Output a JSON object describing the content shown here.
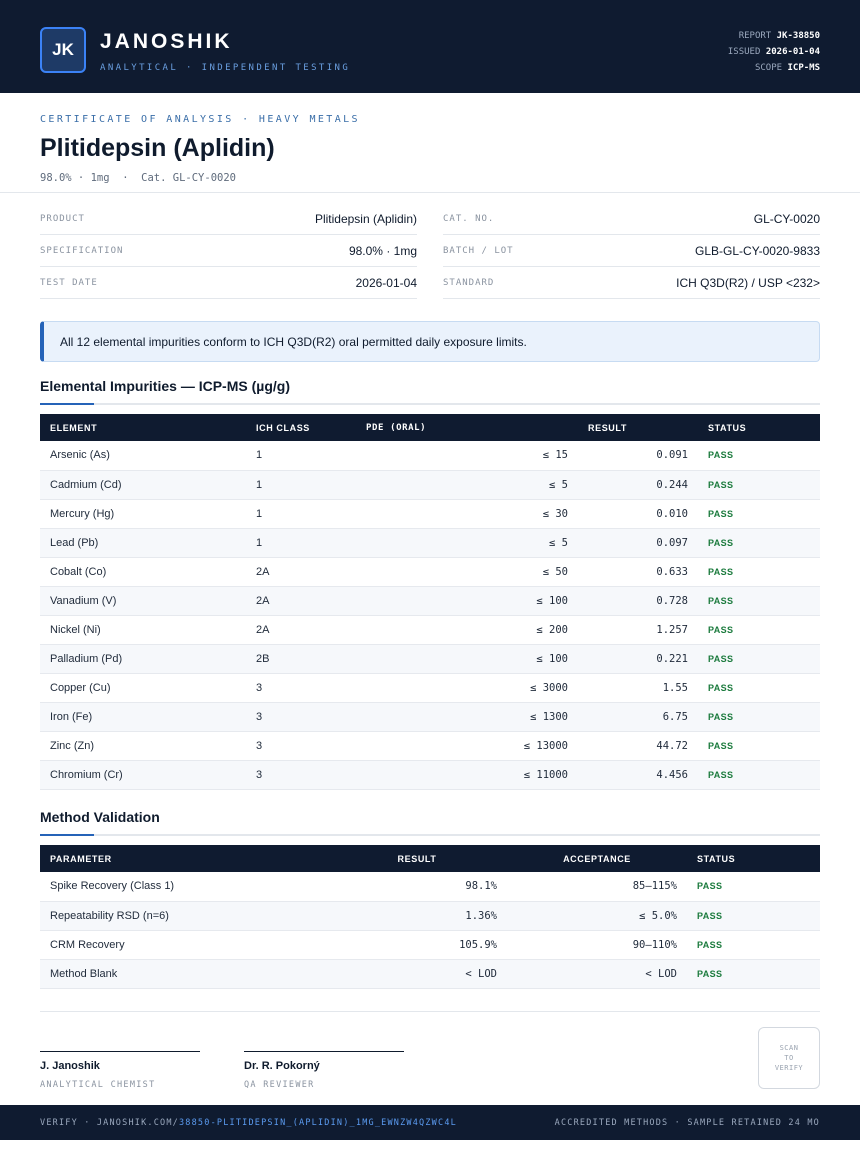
{
  "header": {
    "logo_text": "JK",
    "brand": "JANOSHIK",
    "tagline": "ANALYTICAL · INDEPENDENT TESTING",
    "report_label": "REPORT",
    "report_value": "JK-38850",
    "issued_label": "ISSUED",
    "issued_value": "2026-01-04",
    "scope_label": "SCOPE",
    "scope_value": "ICP-MS"
  },
  "doc": {
    "eyebrow": "CERTIFICATE OF ANALYSIS · HEAVY METALS",
    "title": "Plitidepsin (Aplidin)",
    "purity": "98.0%",
    "mass": "1mg",
    "cat": "Cat. GL-CY-0020"
  },
  "info_left": [
    {
      "key": "PRODUCT",
      "value": "Plitidepsin (Aplidin)"
    },
    {
      "key": "SPECIFICATION",
      "value": "98.0% · 1mg"
    },
    {
      "key": "TEST DATE",
      "value": "2026-01-04"
    }
  ],
  "info_right": [
    {
      "key": "CAT. NO.",
      "value": "GL-CY-0020"
    },
    {
      "key": "BATCH / LOT",
      "value": "GLB-GL-CY-0020-9833"
    },
    {
      "key": "STANDARD",
      "value": "ICH Q3D(R2) / USP <232>"
    }
  ],
  "notice": "All 12 elemental impurities conform to ICH Q3D(R2) oral permitted daily exposure limits.",
  "impurities": {
    "title": "Elemental Impurities — ICP-MS (µg/g)",
    "headers": [
      "ELEMENT",
      "ICH CLASS",
      "PDE (ORAL)",
      "RESULT",
      "STATUS"
    ],
    "rows": [
      [
        "Arsenic (As)",
        "1",
        "≤ 15",
        "0.091",
        "PASS"
      ],
      [
        "Cadmium (Cd)",
        "1",
        "≤ 5",
        "0.244",
        "PASS"
      ],
      [
        "Mercury (Hg)",
        "1",
        "≤ 30",
        "0.010",
        "PASS"
      ],
      [
        "Lead (Pb)",
        "1",
        "≤ 5",
        "0.097",
        "PASS"
      ],
      [
        "Cobalt (Co)",
        "2A",
        "≤ 50",
        "0.633",
        "PASS"
      ],
      [
        "Vanadium (V)",
        "2A",
        "≤ 100",
        "0.728",
        "PASS"
      ],
      [
        "Nickel (Ni)",
        "2A",
        "≤ 200",
        "1.257",
        "PASS"
      ],
      [
        "Palladium (Pd)",
        "2B",
        "≤ 100",
        "0.221",
        "PASS"
      ],
      [
        "Copper (Cu)",
        "3",
        "≤ 3000",
        "1.55",
        "PASS"
      ],
      [
        "Iron (Fe)",
        "3",
        "≤ 1300",
        "6.75",
        "PASS"
      ],
      [
        "Zinc (Zn)",
        "3",
        "≤ 13000",
        "44.72",
        "PASS"
      ],
      [
        "Chromium (Cr)",
        "3",
        "≤ 11000",
        "4.456",
        "PASS"
      ]
    ]
  },
  "validation": {
    "title": "Method Validation",
    "headers": [
      "PARAMETER",
      "RESULT",
      "ACCEPTANCE",
      "STATUS"
    ],
    "rows": [
      [
        "Spike Recovery (Class 1)",
        "98.1%",
        "85–115%",
        "PASS"
      ],
      [
        "Repeatability RSD (n=6)",
        "1.36%",
        "≤ 5.0%",
        "PASS"
      ],
      [
        "CRM Recovery",
        "105.9%",
        "90–110%",
        "PASS"
      ],
      [
        "Method Blank",
        "< LOD",
        "< LOD",
        "PASS"
      ]
    ]
  },
  "signatures": [
    {
      "name": "J. Janoshik",
      "role": "ANALYTICAL CHEMIST"
    },
    {
      "name": "Dr. R. Pokorný",
      "role": "QA REVIEWER"
    }
  ],
  "scan": [
    "SCAN",
    "TO",
    "VERIFY"
  ],
  "footer": {
    "verify_prefix": "VERIFY · JANOSHIK.COM/",
    "verify_path": "38850-PLITIDEPSIN_(APLIDIN)_1MG_EWNZW4QZWC4L",
    "right": "ACCREDITED METHODS · SAMPLE RETAINED 24 MO"
  },
  "colors": {
    "navy": "#0f1b30",
    "accent": "#2563b8",
    "pass": "#1a7a3c"
  }
}
